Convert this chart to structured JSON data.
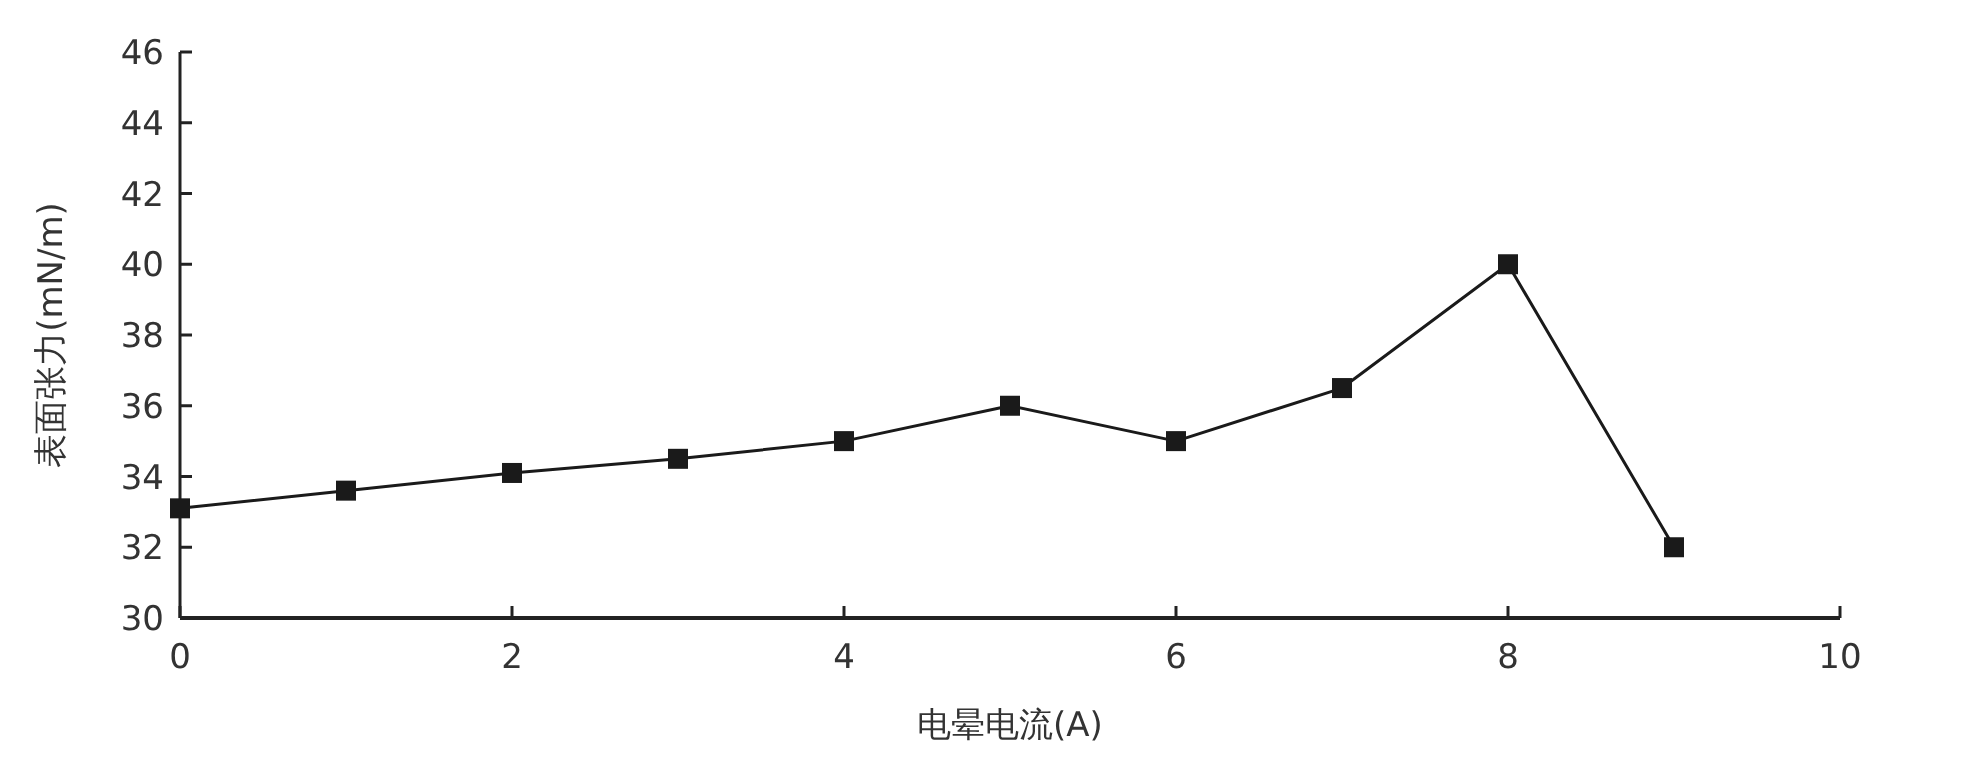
{
  "chart_data": {
    "type": "line",
    "xlabel": "电晕电流(A)",
    "ylabel": "表面张力(mN/m)",
    "x": [
      0,
      1,
      2,
      3,
      4,
      5,
      6,
      7,
      8,
      9
    ],
    "series": [
      {
        "color": "#1a1a1a",
        "values": [
          33.1,
          33.6,
          34.1,
          34.5,
          35.0,
          36.0,
          35.0,
          36.5,
          40.0,
          32.0
        ]
      }
    ],
    "xlim": [
      0,
      10
    ],
    "xticks": [
      0,
      2,
      4,
      6,
      8,
      10
    ],
    "ylim": [
      30,
      46
    ],
    "yticks": [
      30,
      32,
      34,
      36,
      38,
      40,
      42,
      44,
      46
    ],
    "marker": "square",
    "line_style": "solid",
    "grid": false
  }
}
